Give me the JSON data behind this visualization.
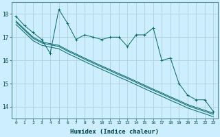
{
  "title": "",
  "xlabel": "Humidex (Indice chaleur)",
  "background_color": "#cceeff",
  "grid_color": "#aacccc",
  "line_color": "#006666",
  "xlim": [
    -0.5,
    23.5
  ],
  "ylim": [
    13.5,
    18.5
  ],
  "yticks": [
    14,
    15,
    16,
    17,
    18
  ],
  "xticks": [
    0,
    1,
    2,
    3,
    4,
    5,
    6,
    7,
    8,
    9,
    10,
    11,
    12,
    13,
    14,
    15,
    16,
    17,
    18,
    19,
    20,
    21,
    22,
    23
  ],
  "zigzag_data": [
    17.9,
    17.5,
    17.2,
    16.9,
    16.3,
    18.2,
    17.6,
    16.9,
    17.1,
    17.0,
    16.9,
    17.0,
    17.0,
    16.6,
    17.1,
    17.1,
    17.4,
    16.0,
    16.1,
    15.0,
    14.5,
    14.3,
    14.3,
    13.8
  ],
  "line1_data": [
    17.7,
    17.35,
    17.0,
    16.8,
    16.72,
    16.65,
    16.45,
    16.28,
    16.1,
    15.93,
    15.76,
    15.6,
    15.43,
    15.27,
    15.1,
    14.93,
    14.76,
    14.6,
    14.43,
    14.27,
    14.1,
    13.97,
    13.85,
    13.72
  ],
  "line2_data": [
    17.65,
    17.3,
    16.95,
    16.75,
    16.67,
    16.6,
    16.4,
    16.23,
    16.05,
    15.88,
    15.71,
    15.55,
    15.38,
    15.22,
    15.05,
    14.88,
    14.71,
    14.55,
    14.38,
    14.22,
    14.05,
    13.92,
    13.8,
    13.67
  ],
  "line3_data": [
    17.55,
    17.2,
    16.85,
    16.65,
    16.57,
    16.5,
    16.3,
    16.13,
    15.95,
    15.78,
    15.61,
    15.45,
    15.28,
    15.12,
    14.95,
    14.78,
    14.61,
    14.45,
    14.28,
    14.12,
    13.95,
    13.82,
    13.7,
    13.57
  ]
}
